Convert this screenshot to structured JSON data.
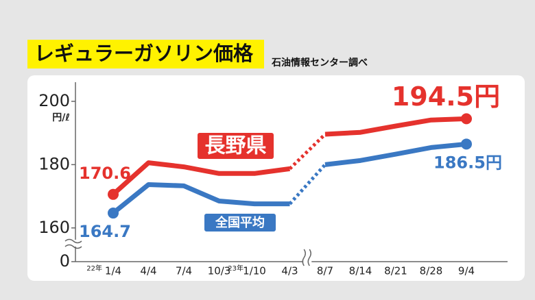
{
  "title": "レギュラーガソリン価格",
  "source": "石油情報センター調べ",
  "chart_data": {
    "type": "line",
    "y_unit": "円/ℓ",
    "categories": [
      "1/4",
      "4/4",
      "7/4",
      "10/3",
      "1/10",
      "4/3",
      "8/7",
      "8/14",
      "8/21",
      "8/28",
      "9/4"
    ],
    "years": [
      "22年",
      null,
      null,
      null,
      "23年",
      null,
      null,
      null,
      null,
      null,
      null
    ],
    "x_break": 5,
    "y_break": true,
    "ylim": [
      158,
      208
    ],
    "yticks": [
      200,
      180,
      160,
      0
    ],
    "series": [
      {
        "name": "長野県",
        "color": "#e5322d",
        "values": [
          170.6,
          180.6,
          179.3,
          177.2,
          177.2,
          178.7,
          189.6,
          190.2,
          192.2,
          194.1,
          194.5
        ],
        "value_labels": [
          "170.6",
          null,
          null,
          null,
          null,
          null,
          null,
          null,
          null,
          null,
          "194.5円"
        ]
      },
      {
        "name": "全国平均",
        "color": "#3a78c3",
        "values": [
          164.7,
          173.7,
          173.3,
          168.5,
          167.6,
          167.6,
          180.0,
          181.3,
          183.3,
          185.4,
          186.5
        ],
        "value_labels": [
          "164.7",
          null,
          null,
          null,
          null,
          null,
          null,
          null,
          null,
          null,
          "186.5円"
        ]
      }
    ]
  }
}
